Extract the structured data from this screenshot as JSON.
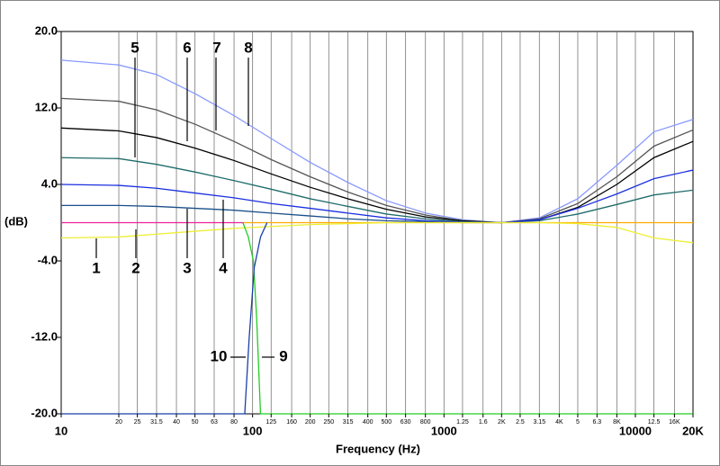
{
  "chart_data": {
    "type": "line",
    "xlabel": "Frequency (Hz)",
    "ylabel": "(dB)",
    "xscale": "log",
    "grid": true,
    "xlim": [
      10,
      20000
    ],
    "ylim": [
      -20,
      20
    ],
    "yticks": [
      {
        "value": 20,
        "label": "20.0"
      },
      {
        "value": 12,
        "label": "12.0"
      },
      {
        "value": 4,
        "label": "4.0"
      },
      {
        "value": -4,
        "label": "-4.0"
      },
      {
        "value": -12,
        "label": "-12.0"
      },
      {
        "value": -20,
        "label": "-20.0"
      }
    ],
    "xticks": [
      10,
      20,
      25,
      {
        "value": 31.5,
        "label": "31.5"
      },
      40,
      50,
      63,
      80,
      100,
      125,
      160,
      200,
      250,
      315,
      400,
      500,
      630,
      800,
      1000,
      {
        "value": 1250,
        "label": "1.25"
      },
      {
        "value": 1600,
        "label": "1.6"
      },
      {
        "value": 2000,
        "label": "2K"
      },
      {
        "value": 2500,
        "label": "2.5"
      },
      {
        "value": 3150,
        "label": "3.15"
      },
      {
        "value": 4000,
        "label": "4K"
      },
      {
        "value": 5000,
        "label": "5"
      },
      {
        "value": 6300,
        "label": "6.3"
      },
      {
        "value": 8000,
        "label": "8K"
      },
      10000,
      {
        "value": 12500,
        "label": "12.5"
      },
      {
        "value": 16000,
        "label": "16K"
      },
      {
        "value": 20000,
        "label": "20K"
      }
    ],
    "series": [
      {
        "color": "#8899ff",
        "x": [
          10,
          20,
          31.5,
          50,
          80,
          125,
          200,
          315,
          500,
          800,
          1250,
          2000,
          3150,
          5000,
          8000,
          12500,
          20000
        ],
        "values": [
          17,
          16.5,
          15.5,
          13.5,
          11.2,
          8.8,
          6.3,
          4.2,
          2.3,
          1.0,
          0.3,
          0,
          0.5,
          2.5,
          6,
          9.5,
          10.8
        ]
      },
      {
        "color": "#555555",
        "x": [
          10,
          20,
          31.5,
          50,
          80,
          125,
          200,
          315,
          500,
          800,
          1250,
          2000,
          3150,
          5000,
          8000,
          12500,
          20000
        ],
        "values": [
          13,
          12.7,
          11.8,
          10.3,
          8.5,
          6.6,
          4.8,
          3.2,
          1.8,
          0.8,
          0.2,
          0,
          0.4,
          2,
          4.8,
          8,
          9.7
        ]
      },
      {
        "color": "#000000",
        "x": [
          10,
          20,
          31.5,
          50,
          80,
          125,
          200,
          315,
          500,
          800,
          1250,
          2000,
          3150,
          5000,
          8000,
          12500,
          20000
        ],
        "values": [
          9.9,
          9.6,
          8.9,
          7.8,
          6.5,
          5.1,
          3.7,
          2.5,
          1.4,
          0.6,
          0.2,
          0,
          0.3,
          1.6,
          4,
          6.8,
          8.5
        ]
      },
      {
        "color": "#1f6b6b",
        "x": [
          10,
          20,
          31.5,
          50,
          80,
          125,
          200,
          315,
          500,
          800,
          1250,
          2000,
          3150,
          5000,
          8000,
          12500,
          20000
        ],
        "values": [
          6.8,
          6.7,
          6.1,
          5.3,
          4.4,
          3.5,
          2.5,
          1.7,
          0.9,
          0.4,
          0.1,
          0,
          0.2,
          0.9,
          1.9,
          2.9,
          3.4
        ]
      },
      {
        "color": "#1a2fe0",
        "x": [
          10,
          20,
          31.5,
          50,
          80,
          125,
          200,
          315,
          500,
          800,
          1250,
          2000,
          3150,
          5000,
          8000,
          12500,
          20000
        ],
        "values": [
          4,
          3.9,
          3.6,
          3.1,
          2.6,
          2.0,
          1.5,
          1.0,
          0.5,
          0.2,
          0.05,
          0,
          0.3,
          1.5,
          3,
          4.6,
          5.5
        ]
      },
      {
        "color": "#1a4f8a",
        "x": [
          10,
          20,
          31.5,
          50,
          80,
          125,
          200,
          315,
          500,
          800,
          1250,
          2000
        ],
        "values": [
          1.8,
          1.8,
          1.7,
          1.5,
          1.3,
          1.0,
          0.7,
          0.4,
          0.2,
          0.1,
          0,
          0
        ]
      },
      {
        "color": "#ee2299",
        "x": [
          10,
          90
        ],
        "values": [
          0,
          0
        ]
      },
      {
        "color": "#ffaa00",
        "x": [
          90,
          20000
        ],
        "values": [
          0,
          0
        ]
      },
      {
        "color": "#eeee33",
        "x": [
          10,
          20,
          31.5,
          50,
          80,
          125,
          200,
          315,
          500,
          3150,
          5000,
          8000,
          12500,
          20000
        ],
        "values": [
          -1.6,
          -1.5,
          -1.2,
          -0.9,
          -0.6,
          -0.4,
          -0.2,
          -0.1,
          0,
          0,
          -0.1,
          -0.5,
          -1.6,
          -2.1
        ]
      },
      {
        "color": "#22cc22",
        "x": [
          89,
          95,
          101,
          105,
          110,
          20000
        ],
        "values": [
          0,
          -1.5,
          -4,
          -10,
          -20,
          -20
        ]
      },
      {
        "color": "#1a3faa",
        "x": [
          10,
          91,
          96,
          102,
          110,
          119
        ],
        "values": [
          -20,
          -20,
          -12,
          -4.7,
          -1.5,
          0
        ]
      }
    ],
    "annotations": [
      "1",
      "2",
      "3",
      "4",
      "5",
      "6",
      "7",
      "8",
      "10",
      "9"
    ]
  }
}
